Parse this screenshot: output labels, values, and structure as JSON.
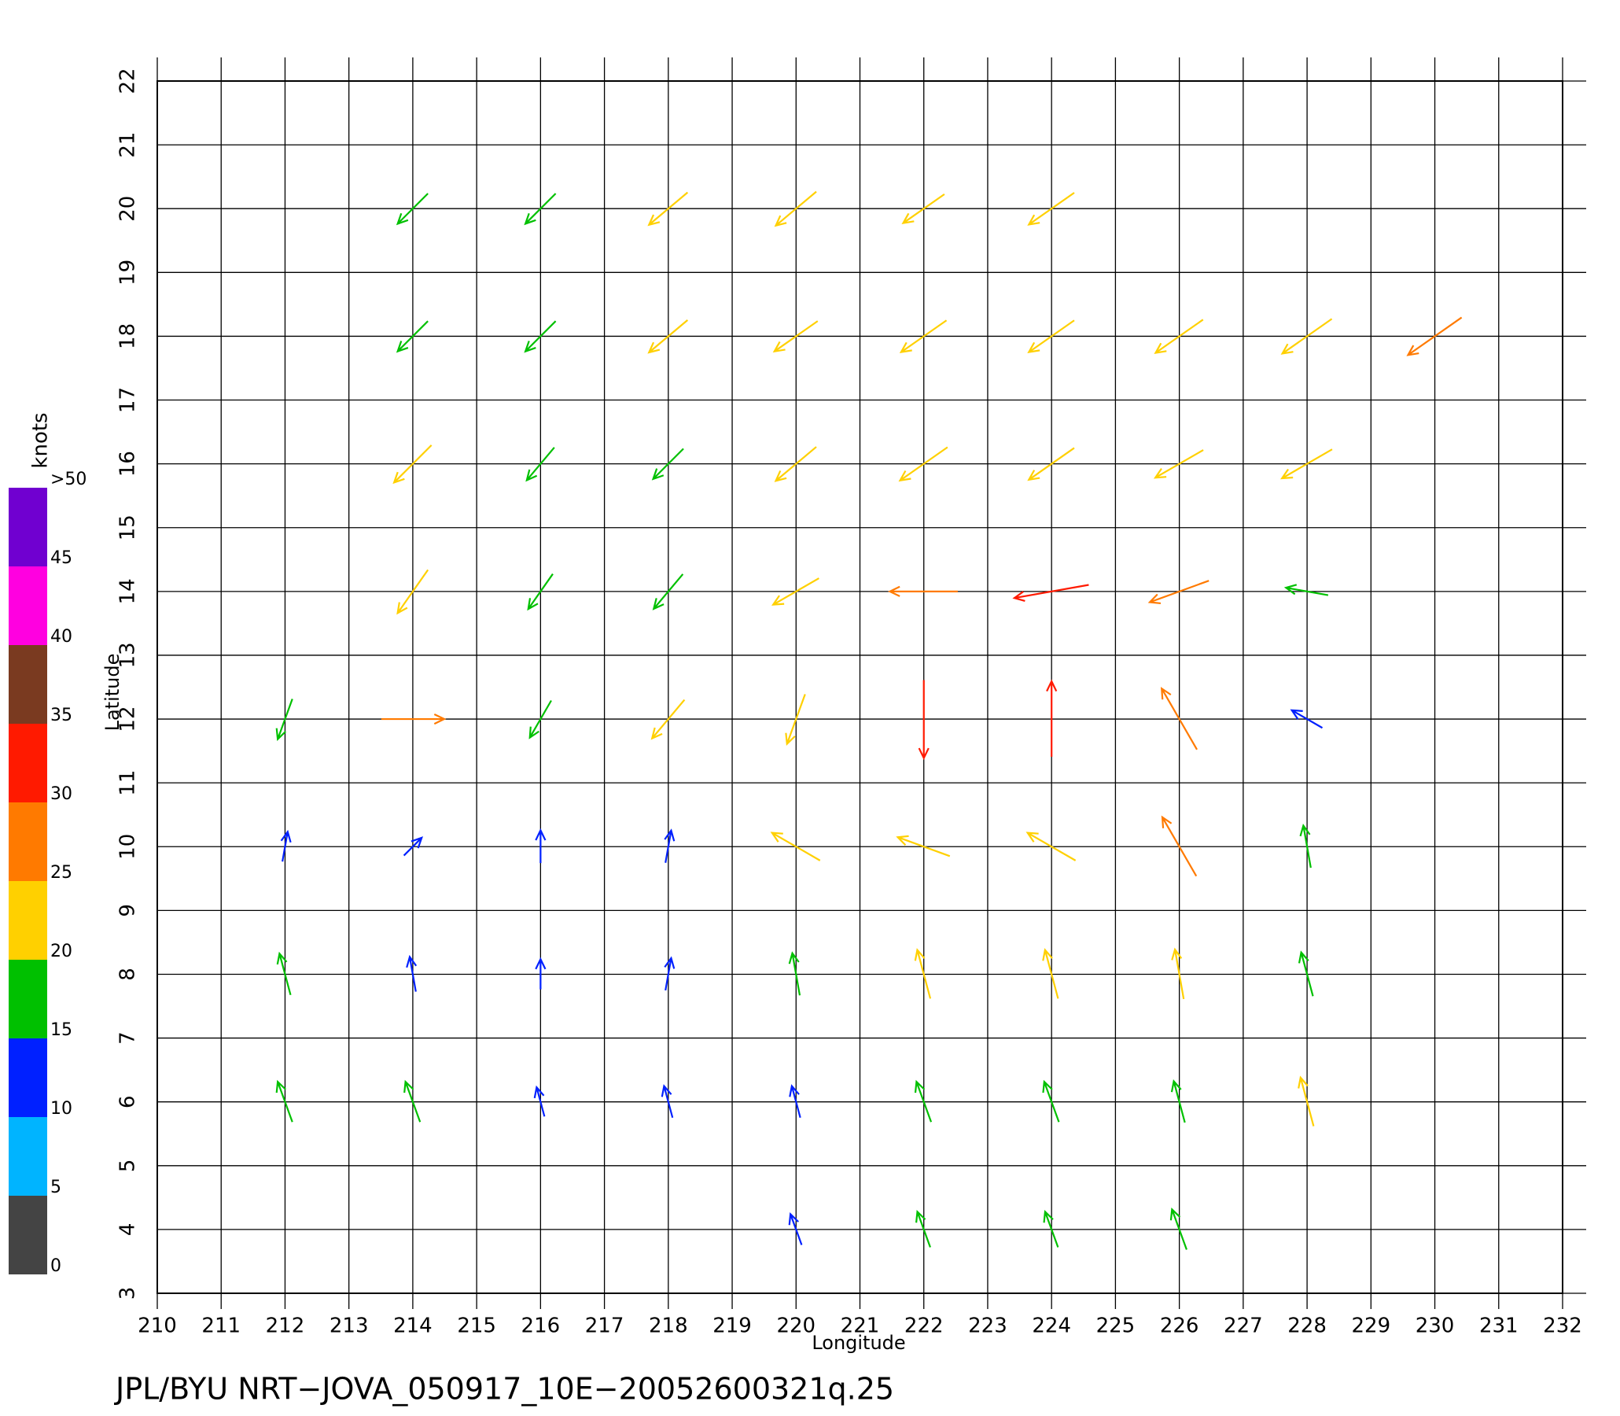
{
  "chart_data": {
    "type": "vector",
    "x_label": "Longitude",
    "y_label": "Latitude",
    "footer": "JPL/BYU  NRT−JOVA_050917_10E−20052600321q.25",
    "xlim": [
      210,
      232
    ],
    "ylim": [
      3,
      22
    ],
    "xticks": [
      210,
      211,
      212,
      213,
      214,
      215,
      216,
      217,
      218,
      219,
      220,
      221,
      222,
      223,
      224,
      225,
      226,
      227,
      228,
      229,
      230,
      231,
      232
    ],
    "yticks": [
      3,
      4,
      5,
      6,
      7,
      8,
      9,
      10,
      11,
      12,
      13,
      14,
      15,
      16,
      17,
      18,
      19,
      20,
      21,
      22
    ],
    "grid": true,
    "colorbar": {
      "label": "knots",
      "lim": [
        0,
        50
      ],
      "ticks": [
        0,
        5,
        10,
        15,
        20,
        25,
        30,
        35,
        40,
        45,
        {
          "value": 50,
          "label": ">50"
        }
      ],
      "colors": [
        "#444444",
        "#00b4ff",
        "#0020ff",
        "#00c000",
        "#ffd000",
        "#ff7a00",
        "#ff1a00",
        "#7a3a20",
        "#ff00e0",
        "#7000d0"
      ]
    },
    "wind": {
      "lons": [
        212,
        214,
        216,
        218,
        220,
        222,
        224,
        226,
        228,
        230
      ],
      "lats": [
        20,
        18,
        16,
        14,
        12,
        10,
        8,
        6,
        4
      ],
      "speed": [
        [
          null,
          17,
          17,
          20,
          21,
          20,
          22,
          null,
          null,
          null
        ],
        [
          null,
          17,
          17,
          20,
          21,
          22,
          22,
          23,
          24,
          26
        ],
        [
          null,
          21,
          17,
          17,
          21,
          23,
          22,
          22,
          23,
          null
        ],
        [
          null,
          21,
          17,
          18,
          21,
          27,
          30,
          25,
          17,
          null
        ],
        [
          17,
          25,
          17,
          20,
          21,
          31,
          30,
          28,
          14,
          null
        ],
        [
          12,
          10,
          13,
          13,
          22,
          22,
          22,
          27,
          17,
          null
        ],
        [
          17,
          14,
          12,
          13,
          17,
          20,
          20,
          20,
          18,
          null
        ],
        [
          17,
          17,
          12,
          13,
          13,
          17,
          17,
          17,
          20,
          null
        ],
        [
          null,
          null,
          null,
          null,
          13,
          15,
          15,
          17,
          null,
          null
        ]
      ],
      "heading": [
        [
          null,
          225,
          225,
          230,
          230,
          235,
          235,
          null,
          null,
          null
        ],
        [
          null,
          225,
          225,
          230,
          235,
          235,
          235,
          235,
          235,
          235
        ],
        [
          null,
          225,
          220,
          225,
          230,
          235,
          235,
          240,
          240,
          null
        ],
        [
          null,
          215,
          215,
          220,
          240,
          270,
          260,
          250,
          280,
          null
        ],
        [
          200,
          90,
          210,
          220,
          200,
          180,
          0,
          330,
          300,
          null
        ],
        [
          10,
          45,
          0,
          10,
          300,
          290,
          300,
          330,
          350,
          null
        ],
        [
          345,
          350,
          0,
          10,
          350,
          345,
          345,
          350,
          345,
          null
        ],
        [
          340,
          340,
          345,
          345,
          345,
          340,
          340,
          345,
          345,
          null
        ],
        [
          null,
          null,
          null,
          null,
          340,
          340,
          340,
          340,
          null,
          null
        ]
      ]
    }
  }
}
